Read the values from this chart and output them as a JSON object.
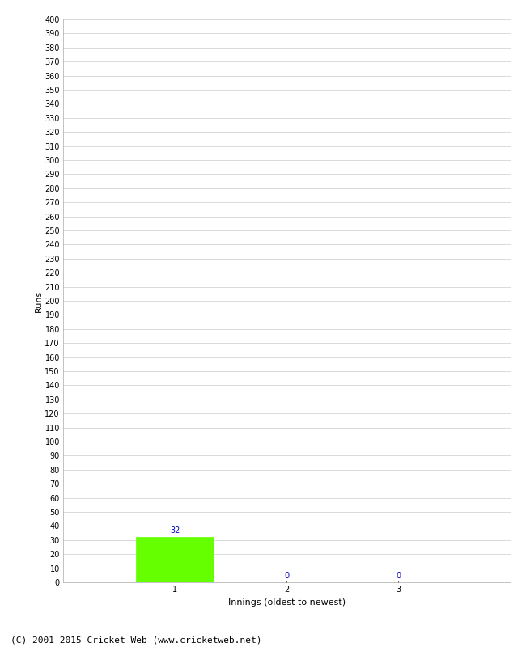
{
  "xlabel": "Innings (oldest to newest)",
  "ylabel": "Runs",
  "categories": [
    1,
    2,
    3
  ],
  "values": [
    32,
    0,
    0
  ],
  "bar_color": "#66ff00",
  "bar_edge_color": "#66ff00",
  "annotation_color": "#0000cc",
  "annotation_fontsize": 7,
  "ylim": [
    0,
    400
  ],
  "xlim": [
    0,
    4
  ],
  "background_color": "#ffffff",
  "grid_color": "#cccccc",
  "footer_text": "(C) 2001-2015 Cricket Web (www.cricketweb.net)",
  "footer_fontsize": 8,
  "axis_label_fontsize": 8,
  "tick_fontsize": 7,
  "bar_width": 0.7
}
